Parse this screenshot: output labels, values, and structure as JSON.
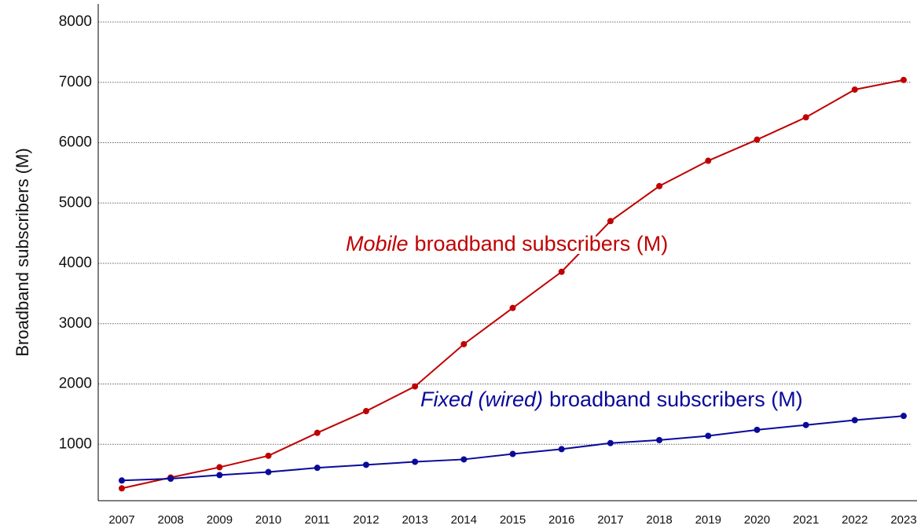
{
  "chart_data": {
    "type": "line",
    "y_label": "Broadband subscribers (M)",
    "categories": [
      "2007",
      "2008",
      "2009",
      "2010",
      "2011",
      "2012",
      "2013",
      "2014",
      "2015",
      "2016",
      "2017",
      "2018",
      "2019",
      "2020",
      "2021",
      "2022",
      "2023"
    ],
    "series": [
      {
        "name": "Mobile broadband subscribers (M)",
        "color": "#c00000",
        "values": [
          270,
          450,
          620,
          810,
          1190,
          1550,
          1960,
          2660,
          3260,
          3860,
          4700,
          5280,
          5700,
          6050,
          6420,
          6880,
          7040
        ]
      },
      {
        "name": "Fixed (wired) broadband subscribers (M)",
        "color": "#0a0a9a",
        "values": [
          400,
          430,
          490,
          540,
          610,
          660,
          710,
          750,
          840,
          920,
          1020,
          1070,
          1140,
          1240,
          1320,
          1400,
          1470
        ]
      }
    ],
    "annotations": [
      {
        "italic": "Mobile",
        "text": "broadband subscribers (M)",
        "color": "#c00000"
      },
      {
        "italic": "Fixed (wired)",
        "text": "broadband subscribers (M)",
        "color": "#0a0a9a"
      }
    ],
    "ylim": [
      0,
      8300
    ],
    "yticks": [
      1000,
      2000,
      3000,
      4000,
      5000,
      6000,
      7000,
      8000
    ],
    "grid": true
  }
}
